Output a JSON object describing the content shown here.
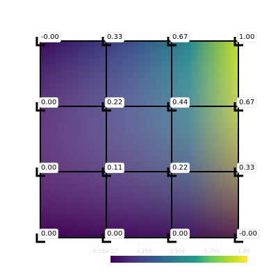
{
  "grid": {
    "rows": [
      [
        "-0.00",
        "0.33",
        "0.67",
        "1.00"
      ],
      [
        "0.00",
        "0.22",
        "0.44",
        "0.67"
      ],
      [
        "0.00",
        "0.11",
        "0.22",
        "0.33"
      ],
      [
        "0.00",
        "0.00",
        "0.00",
        "-0.00"
      ]
    ]
  },
  "colorbar": {
    "colormap": "viridis",
    "ticks": [
      "-5.55e-17",
      "0.250",
      "0.500",
      "0.750",
      "1.00"
    ]
  }
}
